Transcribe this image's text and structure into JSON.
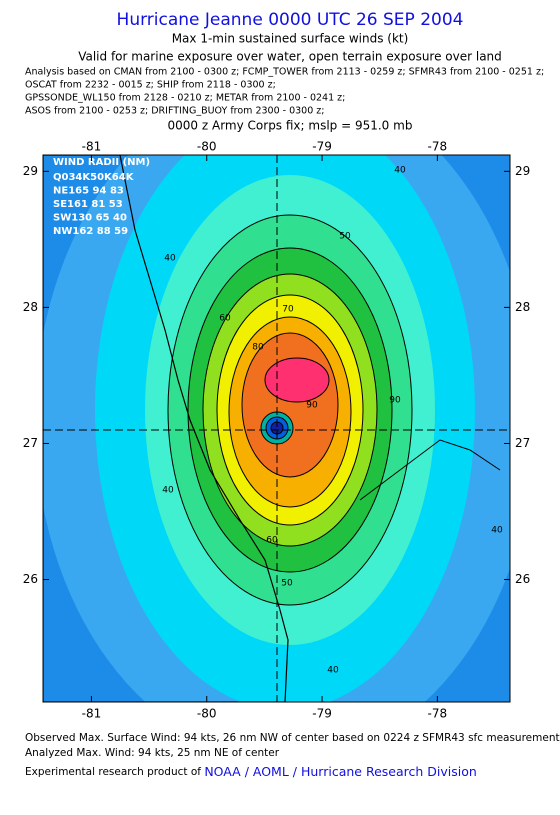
{
  "header": {
    "title": "Hurricane Jeanne 0000 UTC 26 SEP 2004",
    "subtitle": "Max 1-min sustained surface winds (kt)",
    "valid": "Valid for marine exposure over water, open terrain exposure over land",
    "analysis": [
      "Analysis based on  CMAN from 2100 - 0300 z;  FCMP_TOWER from 2113 - 0259 z;  SFMR43 from 2100 - 0251 z;",
      "OSCAT from 2232 - 0015 z;  SHIP from 2118 - 0300 z;",
      "GPSSONDE_WL150 from 2128 - 0210 z;  METAR from 2100 - 0241 z;",
      "ASOS from 2100 - 0253 z;  DRIFTING_BUOY from 2300 - 0300 z;"
    ],
    "fix": "0000 z Army Corps fix; mslp = 951.0 mb"
  },
  "map": {
    "xlim": [
      -81.42,
      -77.37
    ],
    "ylim": [
      25.1,
      29.12
    ],
    "lon_ticks": [
      -81,
      -80,
      -79,
      -78
    ],
    "lat_ticks": [
      26,
      27,
      28,
      29
    ],
    "wind_radii": {
      "title": "WIND RADII (NM)",
      "rows": [
        "Q034K50K64K",
        "NE165 94 83",
        "SE161 81 53",
        "SW130 65 40",
        "NW162 88 59"
      ]
    },
    "contour_labels": [
      40,
      50,
      40,
      60,
      70,
      80,
      90,
      90,
      40,
      60,
      50,
      40,
      40
    ]
  },
  "footer": {
    "lines": [
      "Observed Max. Surface Wind: 94 kts, 26 nm NW of center based on 0224 z SFMR43 sfc measurement",
      "Analyzed Max. Wind: 94 kts, 25 nm NE of center"
    ],
    "credit_prefix": "Experimental research product of ",
    "credit_link": "NOAA / AOML / Hurricane Research Division"
  }
}
